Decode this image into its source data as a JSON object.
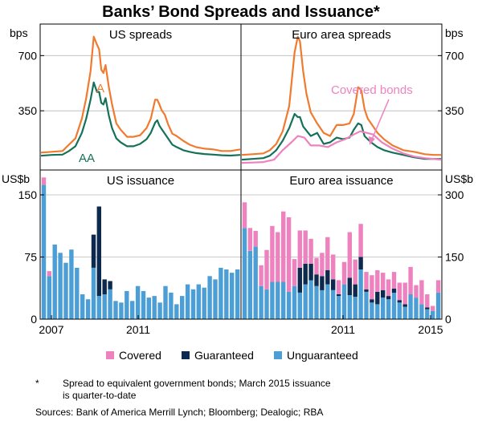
{
  "title": "Banks’ Bond Spreads and Issuance*",
  "footnote": {
    "marker": "*",
    "line1": "Spread to equivalent government bonds; March 2015 issuance",
    "line2": "is quarter-to-date"
  },
  "sources": "Sources:   Bank of America Merrill Lynch; Bloomberg; Dealogic; RBA",
  "legend": [
    {
      "label": "Covered",
      "color": "#ee82bf"
    },
    {
      "label": "Guaranteed",
      "color": "#0d2a4e"
    },
    {
      "label": "Unguaranteed",
      "color": "#4c9fd6"
    }
  ],
  "x_ticks": {
    "left": [
      "2007",
      "2011"
    ],
    "right": [
      "2011",
      "2015"
    ]
  },
  "colors": {
    "A": "#f07a2e",
    "AA": "#157158",
    "Covered bonds": "#ee82bf"
  },
  "chart_data": [
    {
      "type": "line",
      "title": "US spreads",
      "ylabel": "bps",
      "y_ticks": [
        350,
        700
      ],
      "ylim": [
        0,
        900
      ],
      "xlim": [
        2006.0,
        2015.25
      ],
      "series": [
        {
          "name": "A",
          "color": "#f07a2e",
          "x": [
            2006.0,
            2006.5,
            2007.0,
            2007.3,
            2007.6,
            2007.9,
            2008.1,
            2008.3,
            2008.45,
            2008.6,
            2008.7,
            2008.8,
            2008.9,
            2009.0,
            2009.15,
            2009.3,
            2009.5,
            2009.7,
            2010.0,
            2010.3,
            2010.6,
            2010.9,
            2011.1,
            2011.3,
            2011.4,
            2011.5,
            2011.6,
            2011.75,
            2011.9,
            2012.1,
            2012.3,
            2012.6,
            2012.9,
            2013.2,
            2013.6,
            2014.0,
            2014.4,
            2014.8,
            2015.25
          ],
          "y": [
            85,
            90,
            95,
            135,
            175,
            300,
            430,
            600,
            820,
            770,
            740,
            610,
            590,
            640,
            500,
            390,
            270,
            230,
            185,
            185,
            195,
            240,
            300,
            420,
            420,
            390,
            355,
            325,
            265,
            205,
            190,
            160,
            135,
            120,
            110,
            105,
            95,
            95,
            105
          ]
        },
        {
          "name": "AA",
          "color": "#157158",
          "x": [
            2006.0,
            2006.5,
            2007.0,
            2007.3,
            2007.6,
            2007.9,
            2008.1,
            2008.3,
            2008.45,
            2008.6,
            2008.7,
            2008.8,
            2008.9,
            2009.0,
            2009.15,
            2009.3,
            2009.5,
            2009.7,
            2010.0,
            2010.3,
            2010.6,
            2010.9,
            2011.1,
            2011.3,
            2011.4,
            2011.5,
            2011.6,
            2011.75,
            2011.9,
            2012.1,
            2012.3,
            2012.6,
            2012.9,
            2013.2,
            2013.6,
            2014.0,
            2014.4,
            2014.8,
            2015.25
          ],
          "y": [
            65,
            70,
            72,
            95,
            125,
            210,
            300,
            420,
            530,
            470,
            470,
            400,
            390,
            430,
            320,
            240,
            175,
            150,
            125,
            125,
            140,
            170,
            210,
            275,
            290,
            255,
            235,
            205,
            175,
            135,
            120,
            100,
            90,
            82,
            76,
            72,
            68,
            66,
            70
          ]
        }
      ],
      "annotations": [
        "A",
        "AA"
      ]
    },
    {
      "type": "line",
      "title": "Euro area spreads",
      "ylabel": "bps",
      "y_ticks": [
        350,
        700
      ],
      "ylim": [
        0,
        900
      ],
      "xlim": [
        2006.0,
        2015.25
      ],
      "series": [
        {
          "name": "A",
          "color": "#f07a2e",
          "x": [
            2006.0,
            2006.5,
            2007.0,
            2007.3,
            2007.6,
            2007.9,
            2008.2,
            2008.45,
            2008.6,
            2008.7,
            2008.85,
            2009.0,
            2009.2,
            2009.5,
            2009.8,
            2010.1,
            2010.4,
            2010.7,
            2011.0,
            2011.2,
            2011.4,
            2011.55,
            2011.7,
            2011.85,
            2012.0,
            2012.3,
            2012.6,
            2013.0,
            2013.5,
            2014.0,
            2014.5,
            2014.9,
            2015.25
          ],
          "y": [
            70,
            75,
            80,
            100,
            140,
            220,
            380,
            720,
            820,
            790,
            600,
            460,
            340,
            270,
            210,
            190,
            260,
            260,
            270,
            330,
            500,
            480,
            360,
            300,
            270,
            210,
            170,
            130,
            100,
            90,
            75,
            70,
            70
          ]
        },
        {
          "name": "AA",
          "color": "#157158",
          "x": [
            2006.0,
            2006.5,
            2007.0,
            2007.3,
            2007.6,
            2007.9,
            2008.2,
            2008.45,
            2008.6,
            2008.7,
            2008.85,
            2009.0,
            2009.2,
            2009.5,
            2009.8,
            2010.1,
            2010.4,
            2010.7,
            2011.0,
            2011.2,
            2011.4,
            2011.55,
            2011.7,
            2011.85,
            2012.0,
            2012.3,
            2012.6,
            2013.0,
            2013.5,
            2014.0,
            2014.5,
            2014.9,
            2015.25
          ],
          "y": [
            40,
            45,
            50,
            65,
            100,
            160,
            240,
            330,
            310,
            310,
            250,
            225,
            190,
            210,
            140,
            150,
            180,
            170,
            180,
            230,
            270,
            260,
            190,
            170,
            150,
            120,
            100,
            85,
            70,
            55,
            45,
            45,
            45
          ]
        },
        {
          "name": "Covered bonds",
          "color": "#ee82bf",
          "x": [
            2006.0,
            2006.5,
            2007.0,
            2007.5,
            2007.9,
            2008.3,
            2008.6,
            2008.9,
            2009.2,
            2009.6,
            2010.0,
            2010.4,
            2010.8,
            2011.2,
            2011.5,
            2011.8,
            2012.1,
            2012.5,
            2013.0,
            2013.5,
            2014.0,
            2014.5,
            2015.25
          ],
          "y": [
            20,
            22,
            25,
            40,
            100,
            150,
            190,
            180,
            130,
            130,
            120,
            150,
            170,
            200,
            220,
            210,
            200,
            150,
            110,
            80,
            60,
            50,
            40
          ]
        }
      ],
      "annotations": [
        "Covered bonds"
      ]
    },
    {
      "type": "bar",
      "title": "US issuance",
      "ylabel": "US$b",
      "y_ticks": [
        0,
        75,
        150
      ],
      "ylim": [
        0,
        180
      ],
      "stacked": true,
      "categories": [
        "2006Q2",
        "2006Q3",
        "2006Q4",
        "2007Q1",
        "2007Q2",
        "2007Q3",
        "2007Q4",
        "2008Q1",
        "2008Q2",
        "2008Q3",
        "2008Q4",
        "2009Q1",
        "2009Q2",
        "2009Q3",
        "2009Q4",
        "2010Q1",
        "2010Q2",
        "2010Q3",
        "2010Q4",
        "2011Q1",
        "2011Q2",
        "2011Q3",
        "2011Q4",
        "2012Q1",
        "2012Q2",
        "2012Q3",
        "2012Q4",
        "2013Q1",
        "2013Q2",
        "2013Q3",
        "2013Q4",
        "2014Q1",
        "2014Q2",
        "2014Q3",
        "2014Q4",
        "2015Q1"
      ],
      "series": [
        {
          "name": "Unguaranteed",
          "color": "#4c9fd6",
          "values": [
            162,
            52,
            90,
            80,
            68,
            84,
            62,
            30,
            24,
            62,
            28,
            30,
            36,
            22,
            20,
            34,
            22,
            40,
            34,
            26,
            28,
            20,
            40,
            32,
            18,
            28,
            42,
            36,
            42,
            38,
            52,
            48,
            62,
            60,
            56,
            60
          ]
        },
        {
          "name": "Guaranteed",
          "color": "#0d2a4e",
          "values": [
            0,
            0,
            0,
            0,
            0,
            0,
            0,
            0,
            0,
            40,
            108,
            18,
            10,
            0,
            0,
            0,
            0,
            0,
            0,
            0,
            0,
            0,
            0,
            0,
            0,
            0,
            0,
            0,
            0,
            0,
            0,
            0,
            0,
            0,
            0,
            0
          ]
        },
        {
          "name": "Covered",
          "color": "#ee82bf",
          "values": [
            9,
            6,
            0,
            0,
            0,
            0,
            0,
            0,
            0,
            0,
            0,
            0,
            0,
            0,
            0,
            0,
            0,
            0,
            0,
            0,
            0,
            0,
            0,
            0,
            0,
            0,
            0,
            0,
            0,
            0,
            0,
            0,
            0,
            0,
            0,
            0
          ]
        }
      ]
    },
    {
      "type": "bar",
      "title": "Euro area issuance",
      "ylabel": "US$b",
      "y_ticks": [
        0,
        150,
        300
      ],
      "ylim": [
        0,
        360
      ],
      "stacked": true,
      "categories": [
        "2006Q2",
        "2006Q3",
        "2006Q4",
        "2007Q1",
        "2007Q2",
        "2007Q3",
        "2007Q4",
        "2008Q1",
        "2008Q2",
        "2008Q3",
        "2008Q4",
        "2009Q1",
        "2009Q2",
        "2009Q3",
        "2009Q4",
        "2010Q1",
        "2010Q2",
        "2010Q3",
        "2010Q4",
        "2011Q1",
        "2011Q2",
        "2011Q3",
        "2011Q4",
        "2012Q1",
        "2012Q2",
        "2012Q3",
        "2012Q4",
        "2013Q1",
        "2013Q2",
        "2013Q3",
        "2013Q4",
        "2014Q1",
        "2014Q2",
        "2014Q3",
        "2014Q4",
        "2015Q1"
      ],
      "series": [
        {
          "name": "Unguaranteed",
          "color": "#4c9fd6",
          "values": [
            220,
            165,
            175,
            80,
            72,
            90,
            90,
            90,
            66,
            80,
            64,
            84,
            94,
            80,
            70,
            84,
            70,
            56,
            84,
            58,
            54,
            120,
            66,
            40,
            36,
            52,
            48,
            64,
            40,
            30,
            60,
            52,
            36,
            24,
            20,
            64
          ]
        },
        {
          "name": "Guaranteed",
          "color": "#0d2a4e",
          "values": [
            0,
            0,
            0,
            0,
            0,
            0,
            0,
            0,
            0,
            0,
            60,
            50,
            40,
            28,
            34,
            34,
            26,
            4,
            0,
            42,
            30,
            30,
            6,
            8,
            30,
            18,
            8,
            10,
            6,
            6,
            0,
            0,
            0,
            4,
            0,
            0
          ]
        },
        {
          "name": "Covered",
          "color": "#ee82bf",
          "values": [
            62,
            55,
            38,
            50,
            95,
            135,
            120,
            170,
            180,
            65,
            90,
            80,
            60,
            40,
            56,
            80,
            60,
            34,
            54,
            110,
            60,
            80,
            42,
            58,
            52,
            42,
            40,
            40,
            42,
            52,
            66,
            30,
            58,
            32,
            12,
            30
          ]
        }
      ]
    }
  ]
}
